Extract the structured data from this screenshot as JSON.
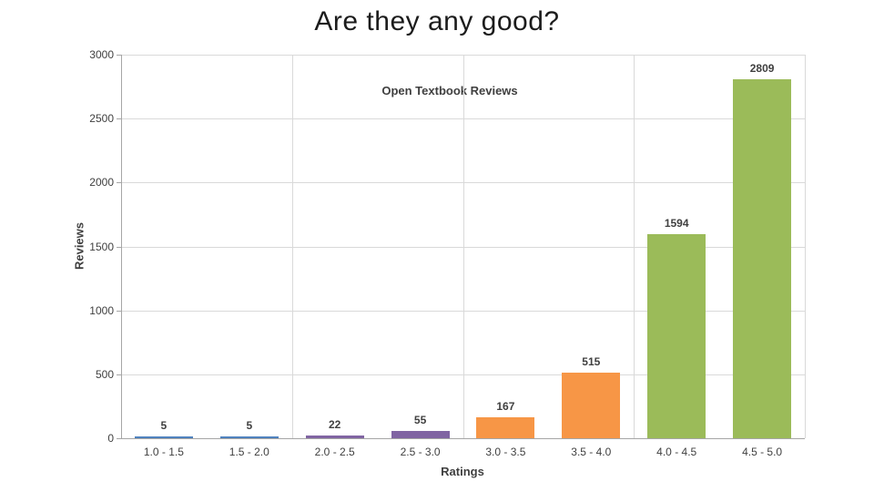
{
  "slide": {
    "title": "Are they any good?"
  },
  "chart_data": {
    "type": "bar",
    "title": "Open Textbook Reviews",
    "xlabel": "Ratings",
    "ylabel": "Reviews",
    "categories": [
      "1.0 - 1.5",
      "1.5 - 2.0",
      "2.0 - 2.5",
      "2.5 - 3.0",
      "3.0 - 3.5",
      "3.5 - 4.0",
      "4.0 - 4.5",
      "4.5 - 5.0"
    ],
    "values": [
      5,
      5,
      22,
      55,
      167,
      515,
      1594,
      2809
    ],
    "bar_colors": [
      "#4f81bd",
      "#4f81bd",
      "#8064a2",
      "#8064a2",
      "#f79646",
      "#f79646",
      "#9bbb59",
      "#9bbb59"
    ],
    "ylim": [
      0,
      3000
    ],
    "ytick_step": 500,
    "ytick_labels": [
      "0",
      "500",
      "1000",
      "1500",
      "2000",
      "2500",
      "3000"
    ],
    "grid": true,
    "vertical_gridline_every_n_categories": 2,
    "legend": "none",
    "theme": {
      "grid_color": "#d9d9d9",
      "axis_color": "#a6a6a6",
      "text_color": "#404040",
      "background": "#ffffff"
    }
  }
}
